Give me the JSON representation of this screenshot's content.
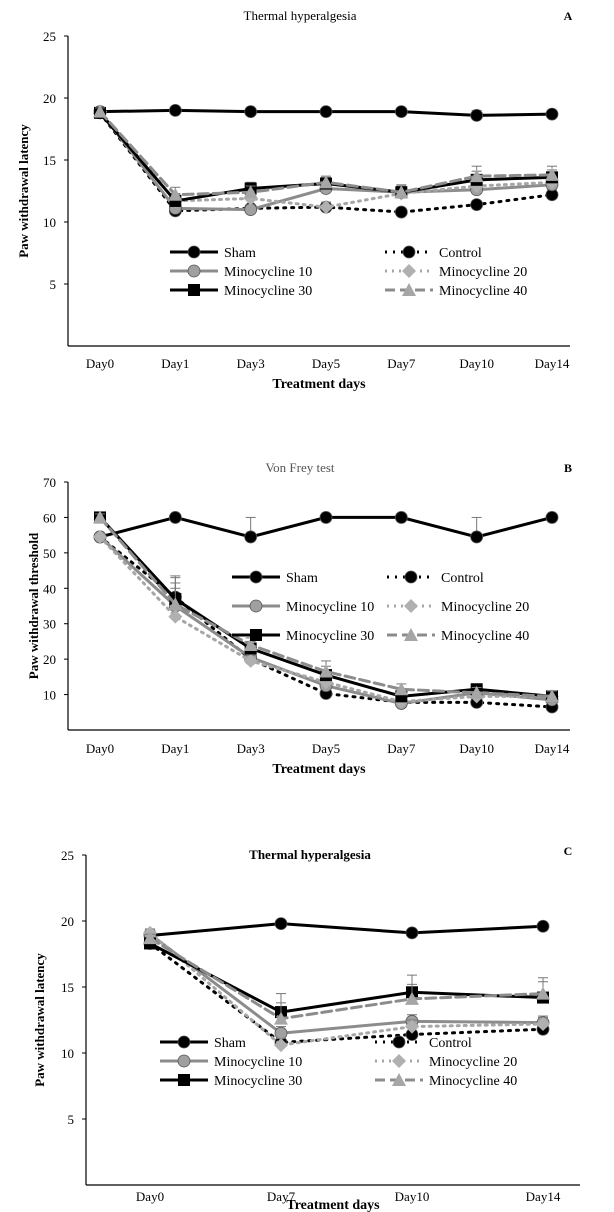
{
  "figure": {
    "panels": [
      {
        "id": "A",
        "title": "Thermal hyperalgesia",
        "panel_label": "A",
        "xlabel": "Treatment days",
        "ylabel": "Paw withdrawal latency"
      },
      {
        "id": "B",
        "title": "Von Frey test",
        "panel_label": "B",
        "xlabel": "Treatment days",
        "ylabel": "Paw withdrawal threshold"
      },
      {
        "id": "C",
        "title": "Thermal hyperalgesia",
        "panel_label": "C",
        "xlabel": "Treatment days",
        "ylabel": "Paw withdrawal latency"
      }
    ]
  },
  "chart_data": [
    {
      "type": "line",
      "title": "Thermal hyperalgesia",
      "panel_label": "A",
      "xlabel": "Treatment days",
      "ylabel": "Paw withdrawal latency",
      "categories": [
        "Day0",
        "Day1",
        "Day3",
        "Day5",
        "Day7",
        "Day10",
        "Day14"
      ],
      "ylim": [
        0,
        25
      ],
      "yticks": [
        5,
        10,
        15,
        20,
        25
      ],
      "grid": false,
      "legend_position": "lower-center",
      "series": [
        {
          "name": "Sham",
          "values": [
            18.9,
            19.0,
            18.9,
            18.9,
            18.9,
            18.6,
            18.7
          ],
          "errors": [
            0.2,
            0.2,
            0.2,
            0.2,
            0.2,
            0.4,
            0.2
          ]
        },
        {
          "name": "Control",
          "values": [
            18.8,
            10.9,
            11.1,
            11.2,
            10.8,
            11.4,
            12.2
          ],
          "errors": [
            0.3,
            0.3,
            0.3,
            0.3,
            0.3,
            0.3,
            0.4
          ]
        },
        {
          "name": "Minocycline 10",
          "values": [
            18.9,
            11.1,
            11.0,
            12.7,
            12.4,
            12.6,
            13.0
          ],
          "errors": [
            0.3,
            0.5,
            0.4,
            0.4,
            0.4,
            0.4,
            0.4
          ]
        },
        {
          "name": "Minocycline 20",
          "values": [
            18.9,
            11.7,
            11.9,
            11.2,
            12.3,
            12.9,
            13.2
          ],
          "errors": [
            0.3,
            0.5,
            0.4,
            0.4,
            0.4,
            0.4,
            0.4
          ]
        },
        {
          "name": "Minocycline 30",
          "values": [
            18.8,
            11.7,
            12.7,
            13.1,
            12.4,
            13.4,
            13.6
          ],
          "errors": [
            0.3,
            0.6,
            0.5,
            0.5,
            0.5,
            0.7,
            0.6
          ]
        },
        {
          "name": "Minocycline 40",
          "values": [
            18.9,
            12.2,
            12.4,
            13.2,
            12.4,
            13.7,
            13.8
          ],
          "errors": [
            0.3,
            0.6,
            0.5,
            0.5,
            0.6,
            0.8,
            0.7
          ]
        }
      ]
    },
    {
      "type": "line",
      "title": "Von Frey test",
      "panel_label": "B",
      "xlabel": "Treatment days",
      "ylabel": "Paw withdrawal threshold",
      "categories": [
        "Day0",
        "Day1",
        "Day3",
        "Day5",
        "Day7",
        "Day10",
        "Day14"
      ],
      "ylim": [
        0,
        70
      ],
      "yticks": [
        10,
        20,
        30,
        40,
        50,
        60,
        70
      ],
      "grid": false,
      "legend_position": "center-right",
      "series": [
        {
          "name": "Sham",
          "values": [
            54.5,
            60.0,
            54.5,
            60.0,
            60.0,
            54.5,
            60.0
          ],
          "errors": [
            0.5,
            0.5,
            5.5,
            0.5,
            0.5,
            5.5,
            0.5
          ]
        },
        {
          "name": "Control",
          "values": [
            54.5,
            37.5,
            20.0,
            10.3,
            7.8,
            7.8,
            6.5
          ],
          "errors": [
            1,
            6,
            1.5,
            1.5,
            1,
            1,
            1
          ]
        },
        {
          "name": "Minocycline 10",
          "values": [
            54.5,
            35.0,
            20.5,
            12.5,
            7.5,
            10.5,
            8.5
          ],
          "errors": [
            1,
            5,
            1.5,
            1.5,
            1,
            1,
            1
          ]
        },
        {
          "name": "Minocycline 20",
          "values": [
            54.5,
            32.0,
            19.5,
            13.5,
            8.0,
            9.5,
            9.5
          ],
          "errors": [
            1,
            5,
            1.5,
            1.5,
            1,
            1,
            1
          ]
        },
        {
          "name": "Minocycline 30",
          "values": [
            60.0,
            37.0,
            23.0,
            15.5,
            9.5,
            11.5,
            9.5
          ],
          "errors": [
            1,
            6,
            2,
            2.5,
            1.5,
            1.5,
            1.5
          ]
        },
        {
          "name": "Minocycline 40",
          "values": [
            60.0,
            35.5,
            24.0,
            16.5,
            11.5,
            10.5,
            9.5
          ],
          "errors": [
            1,
            6,
            2,
            3,
            1.5,
            1.5,
            1.5
          ]
        }
      ]
    },
    {
      "type": "line",
      "title": "Thermal hyperalgesia",
      "panel_label": "C",
      "xlabel": "Treatment days",
      "ylabel": "Paw withdrawal latency",
      "categories": [
        "Day0",
        "Day7",
        "Day10",
        "Day14"
      ],
      "ylim": [
        0,
        25
      ],
      "yticks": [
        5,
        10,
        15,
        20,
        25
      ],
      "grid": false,
      "legend_position": "lower-center",
      "series": [
        {
          "name": "Sham",
          "values": [
            18.9,
            19.8,
            19.1,
            19.6
          ],
          "errors": [
            0.2,
            0.2,
            0.2,
            0.2
          ]
        },
        {
          "name": "Control",
          "values": [
            18.3,
            10.8,
            11.4,
            11.8
          ],
          "errors": [
            0.3,
            0.3,
            0.3,
            0.3
          ]
        },
        {
          "name": "Minocycline 10",
          "values": [
            19.0,
            11.5,
            12.4,
            12.3
          ],
          "errors": [
            0.3,
            0.5,
            0.5,
            0.5
          ]
        },
        {
          "name": "Minocycline 20",
          "values": [
            19.1,
            10.6,
            12.0,
            12.2
          ],
          "errors": [
            0.3,
            0.5,
            0.5,
            0.5
          ]
        },
        {
          "name": "Minocycline 30",
          "values": [
            18.3,
            13.1,
            14.6,
            14.2
          ],
          "errors": [
            0.3,
            1.4,
            1.3,
            1.2
          ]
        },
        {
          "name": "Minocycline 40",
          "values": [
            18.7,
            12.6,
            14.1,
            14.5
          ],
          "errors": [
            0.3,
            1.2,
            1.1,
            1.2
          ]
        }
      ]
    }
  ]
}
